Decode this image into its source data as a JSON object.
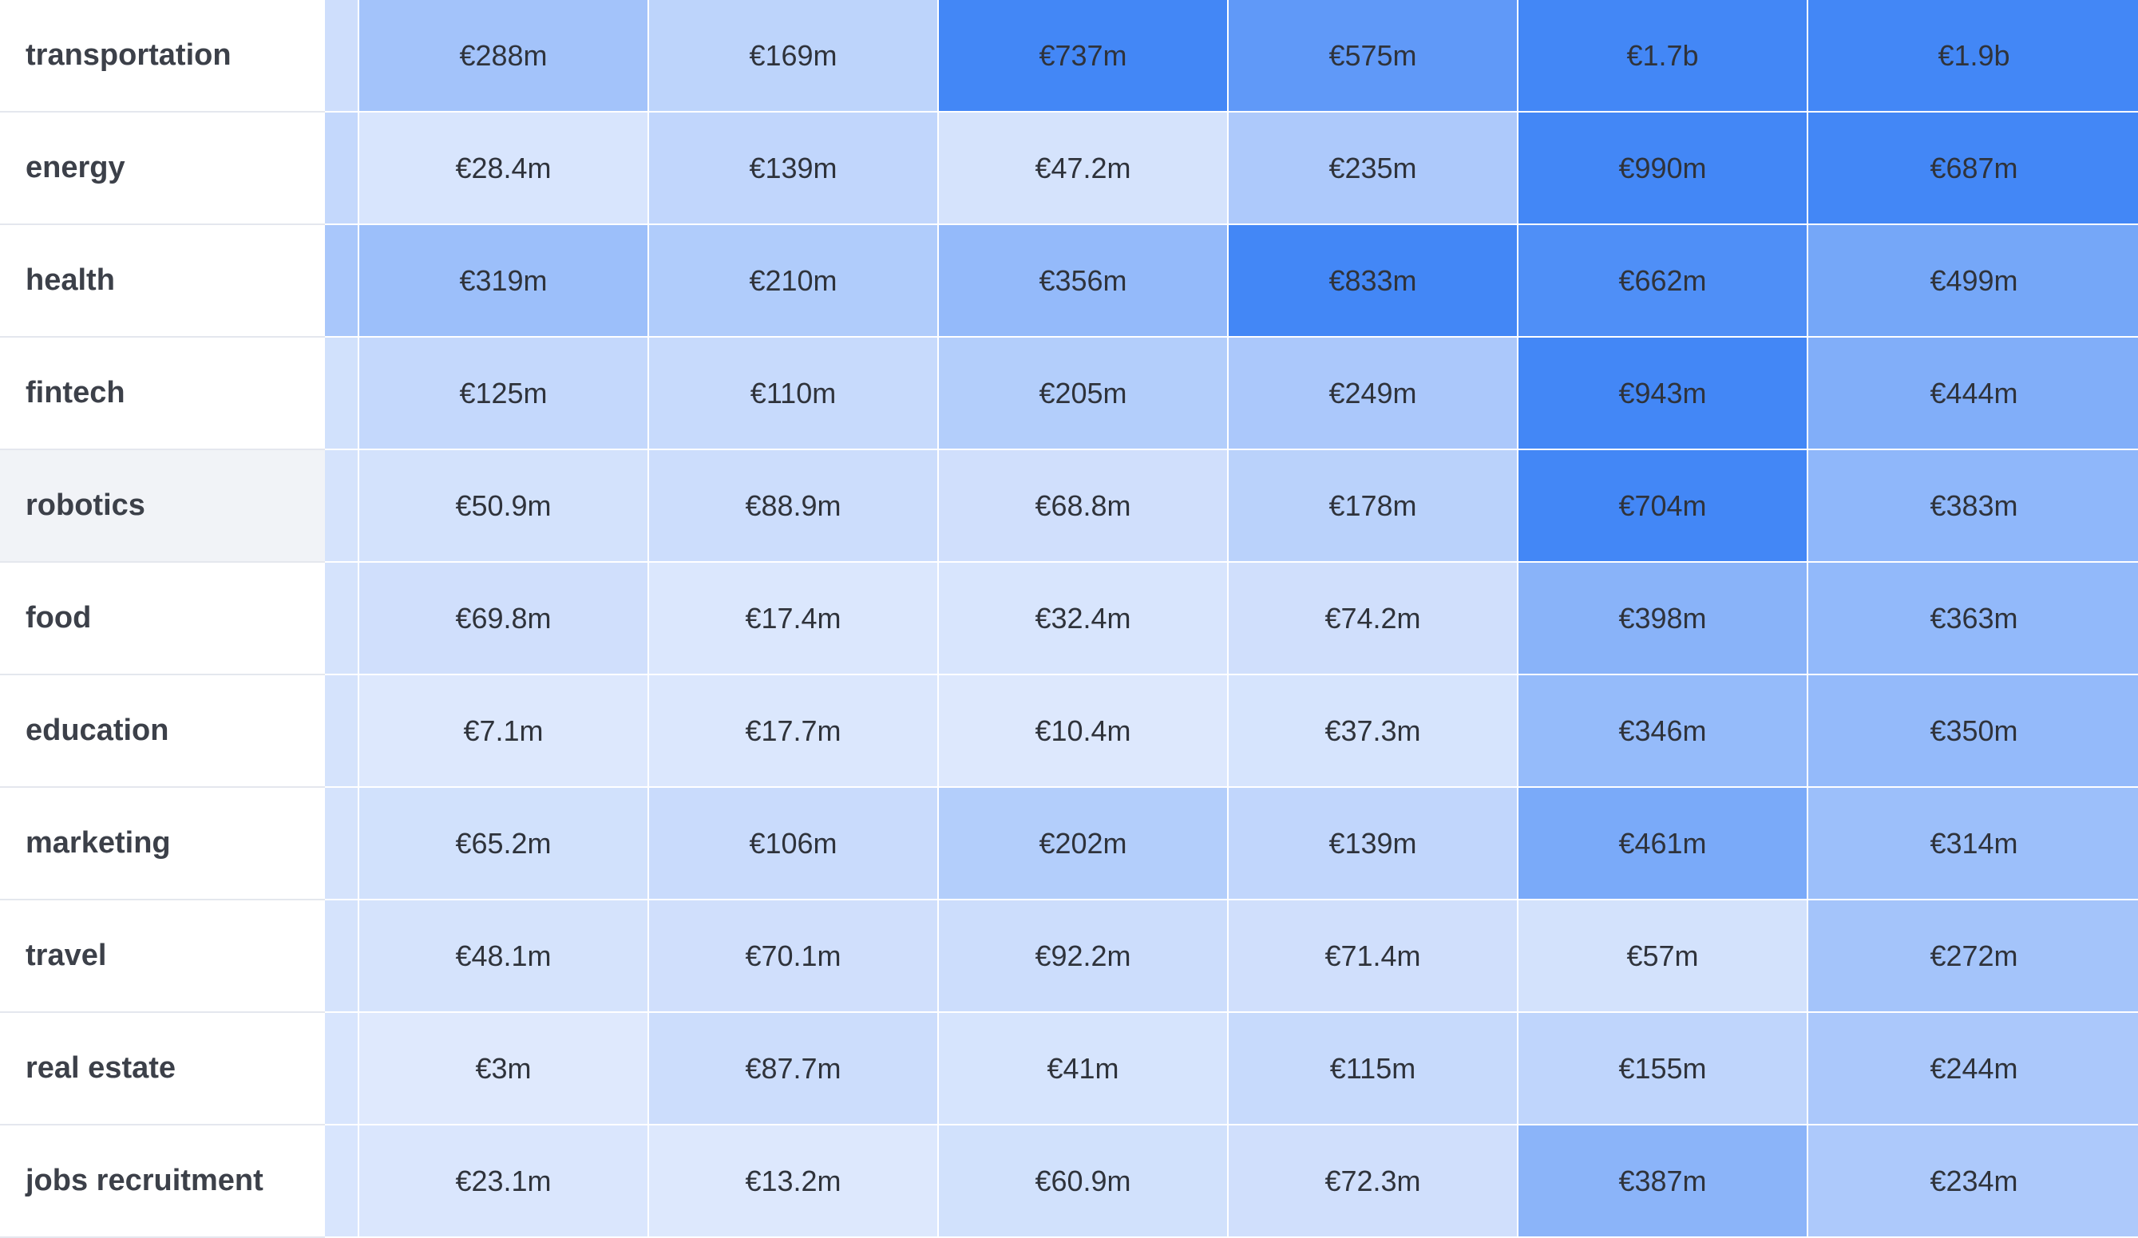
{
  "colors": {
    "scale_min": "#e2ebfd",
    "scale_max": "#3b82f6",
    "label_text": "#3c4049",
    "hover_row_bg": "#f1f3f7"
  },
  "rows": [
    {
      "label": "transportation",
      "cells": [
        "€288m",
        "€169m",
        "€737m",
        "€575m",
        "€1.7b",
        "€1.9b"
      ],
      "intensity": [
        0.38,
        0.22,
        0.95,
        0.78,
        0.95,
        0.95
      ],
      "edge": 0.12
    },
    {
      "label": "energy",
      "cells": [
        "€28.4m",
        "€139m",
        "€47.2m",
        "€235m",
        "€990m",
        "€687m"
      ],
      "intensity": [
        0.06,
        0.2,
        0.08,
        0.32,
        0.95,
        0.95
      ],
      "edge": 0.18
    },
    {
      "label": "health",
      "cells": [
        "€319m",
        "€210m",
        "€356m",
        "€833m",
        "€662m",
        "€499m"
      ],
      "intensity": [
        0.42,
        0.3,
        0.47,
        0.95,
        0.88,
        0.65
      ],
      "edge": 0.34
    },
    {
      "label": "fintech",
      "cells": [
        "€125m",
        "€110m",
        "€205m",
        "€249m",
        "€943m",
        "€444m"
      ],
      "intensity": [
        0.18,
        0.16,
        0.28,
        0.33,
        0.95,
        0.58
      ],
      "edge": 0.1
    },
    {
      "label": "robotics",
      "cells": [
        "€50.9m",
        "€88.9m",
        "€68.8m",
        "€178m",
        "€704m",
        "€383m"
      ],
      "intensity": [
        0.09,
        0.13,
        0.11,
        0.24,
        0.95,
        0.5
      ],
      "edge": 0.08,
      "hovered": true
    },
    {
      "label": "food",
      "cells": [
        "€69.8m",
        "€17.4m",
        "€32.4m",
        "€74.2m",
        "€398m",
        "€363m"
      ],
      "intensity": [
        0.11,
        0.04,
        0.06,
        0.11,
        0.53,
        0.48
      ],
      "edge": 0.08
    },
    {
      "label": "education",
      "cells": [
        "€7.1m",
        "€17.7m",
        "€10.4m",
        "€37.3m",
        "€346m",
        "€350m"
      ],
      "intensity": [
        0.03,
        0.04,
        0.03,
        0.07,
        0.46,
        0.47
      ],
      "edge": 0.08
    },
    {
      "label": "marketing",
      "cells": [
        "€65.2m",
        "€106m",
        "€202m",
        "€139m",
        "€461m",
        "€314m"
      ],
      "intensity": [
        0.1,
        0.15,
        0.28,
        0.2,
        0.62,
        0.42
      ],
      "edge": 0.08
    },
    {
      "label": "travel",
      "cells": [
        "€48.1m",
        "€70.1m",
        "€92.2m",
        "€71.4m",
        "€57m",
        "€272m"
      ],
      "intensity": [
        0.08,
        0.11,
        0.13,
        0.11,
        0.09,
        0.37
      ],
      "edge": 0.08
    },
    {
      "label": "real estate",
      "cells": [
        "€3m",
        "€87.7m",
        "€41m",
        "€115m",
        "€155m",
        "€244m"
      ],
      "intensity": [
        0.02,
        0.13,
        0.07,
        0.16,
        0.21,
        0.33
      ],
      "edge": 0.06
    },
    {
      "label": "jobs recruitment",
      "cells": [
        "€23.1m",
        "€13.2m",
        "€60.9m",
        "€72.3m",
        "€387m",
        "€234m"
      ],
      "intensity": [
        0.05,
        0.03,
        0.1,
        0.11,
        0.52,
        0.32
      ],
      "edge": 0.06
    }
  ]
}
